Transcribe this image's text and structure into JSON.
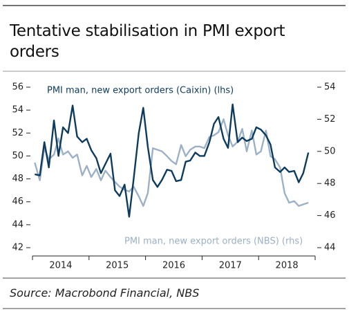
{
  "chart_data": {
    "type": "line",
    "title": "Tentative stabilisation in PMI export orders",
    "source": "Source: Macrobond Financial, NBS",
    "x": [
      2014.04,
      2014.13,
      2014.21,
      2014.29,
      2014.38,
      2014.46,
      2014.54,
      2014.63,
      2014.71,
      2014.79,
      2014.88,
      2014.96,
      2015.04,
      2015.13,
      2015.21,
      2015.29,
      2015.38,
      2015.46,
      2015.54,
      2015.63,
      2015.71,
      2015.79,
      2015.88,
      2015.96,
      2016.04,
      2016.13,
      2016.21,
      2016.29,
      2016.38,
      2016.46,
      2016.54,
      2016.63,
      2016.71,
      2016.79,
      2016.88,
      2016.96,
      2017.04,
      2017.13,
      2017.21,
      2017.29,
      2017.38,
      2017.46,
      2017.54,
      2017.63,
      2017.71,
      2017.79,
      2017.88,
      2017.96,
      2018.04,
      2018.13,
      2018.21,
      2018.29,
      2018.38,
      2018.46,
      2018.54,
      2018.63,
      2018.71,
      2018.79,
      2018.88
    ],
    "xlim": [
      2014,
      2019
    ],
    "xticks": [
      2014,
      2015,
      2016,
      2017,
      2018,
      2019
    ],
    "x_labels": [
      "2014",
      "2015",
      "2016",
      "2017",
      "2018"
    ],
    "ylim": [
      42,
      56
    ],
    "yticks": [
      42,
      44,
      46,
      48,
      50,
      52,
      54,
      56
    ],
    "y2lim": [
      44,
      54
    ],
    "y2ticks": [
      44,
      46,
      48,
      50,
      52,
      54
    ],
    "series": [
      {
        "name": "PMI man, new export orders (Caixin) (lhs)",
        "color": "#0d3b5e",
        "axis": "y",
        "values": [
          48.4,
          48.3,
          51.2,
          49.0,
          53.1,
          50.0,
          52.5,
          52.0,
          54.4,
          51.7,
          51.2,
          51.5,
          50.5,
          49.8,
          48.5,
          49.3,
          50.2,
          47.0,
          46.5,
          47.5,
          44.7,
          48.0,
          52.0,
          54.2,
          50.8,
          47.9,
          47.3,
          47.9,
          48.8,
          48.7,
          47.8,
          47.9,
          49.5,
          49.6,
          50.3,
          50.0,
          50.0,
          51.2,
          52.8,
          53.4,
          51.5,
          50.7,
          54.5,
          51.2,
          51.6,
          51.3,
          51.5,
          52.5,
          52.3,
          51.8,
          51.0,
          49.0,
          48.6,
          49.0,
          48.6,
          48.7,
          47.7,
          48.5,
          50.3
        ]
      },
      {
        "name": "PMI man, new export orders (NBS) (rhs)",
        "color": "#9cb0c6",
        "axis": "y2",
        "values": [
          49.3,
          48.2,
          50.2,
          49.5,
          49.8,
          50.8,
          49.8,
          50.0,
          49.6,
          49.8,
          48.5,
          49.1,
          48.4,
          48.9,
          48.2,
          48.8,
          48.4,
          48.1,
          47.8,
          47.6,
          47.5,
          47.8,
          47.2,
          46.6,
          47.4,
          50.2,
          50.1,
          50.0,
          49.7,
          49.4,
          49.2,
          50.4,
          49.7,
          50.1,
          50.3,
          50.3,
          50.2,
          50.9,
          51.0,
          51.2,
          52.0,
          51.0,
          50.3,
          50.6,
          51.4,
          50.0,
          51.3,
          49.8,
          50.0,
          51.3,
          49.7,
          49.5,
          49.0,
          47.4,
          46.8,
          46.9,
          46.6,
          46.7,
          46.8
        ]
      }
    ]
  }
}
